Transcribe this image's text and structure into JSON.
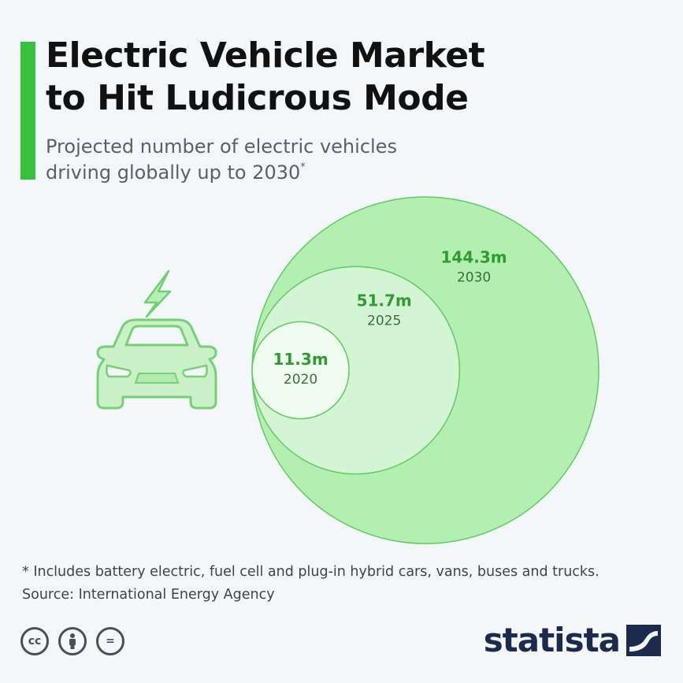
{
  "header": {
    "title_lines": [
      "Electric Vehicle Market",
      "to Hit Ludicrous Mode"
    ],
    "subtitle_lines": [
      "Projected number of electric vehicles",
      "driving globally up to 2030"
    ],
    "subtitle_marker": "*"
  },
  "chart_data": {
    "type": "bubble",
    "title": "Electric Vehicle Market to Hit Ludicrous Mode",
    "subtitle": "Projected number of electric vehicles driving globally up to 2030*",
    "unit": "m",
    "categories": [
      "2020",
      "2025",
      "2030"
    ],
    "values": [
      11.3,
      51.7,
      144.3
    ],
    "labels": [
      "11.3m",
      "51.7m",
      "144.3m"
    ],
    "colors": [
      "#eefbee",
      "#d4f5d4",
      "#b2efb0"
    ],
    "stroke_color": "#5fcc5f"
  },
  "icons": {
    "car": "electric-car-icon",
    "bolt": "lightning-bolt-icon",
    "license": [
      "creative-commons-icon",
      "attribution-icon",
      "no-derivatives-icon"
    ],
    "brand": "statista-logo-icon"
  },
  "footer": {
    "footnote": "* Includes battery electric, fuel cell and plug-in hybrid cars, vans, buses and trucks.",
    "source": "Source: International Energy Agency",
    "cc_labels": [
      "cc",
      "="
    ],
    "brand": "statista"
  },
  "colors": {
    "accent": "#37c23e",
    "brand": "#1c2b4d",
    "background": "#f4f7fa"
  }
}
